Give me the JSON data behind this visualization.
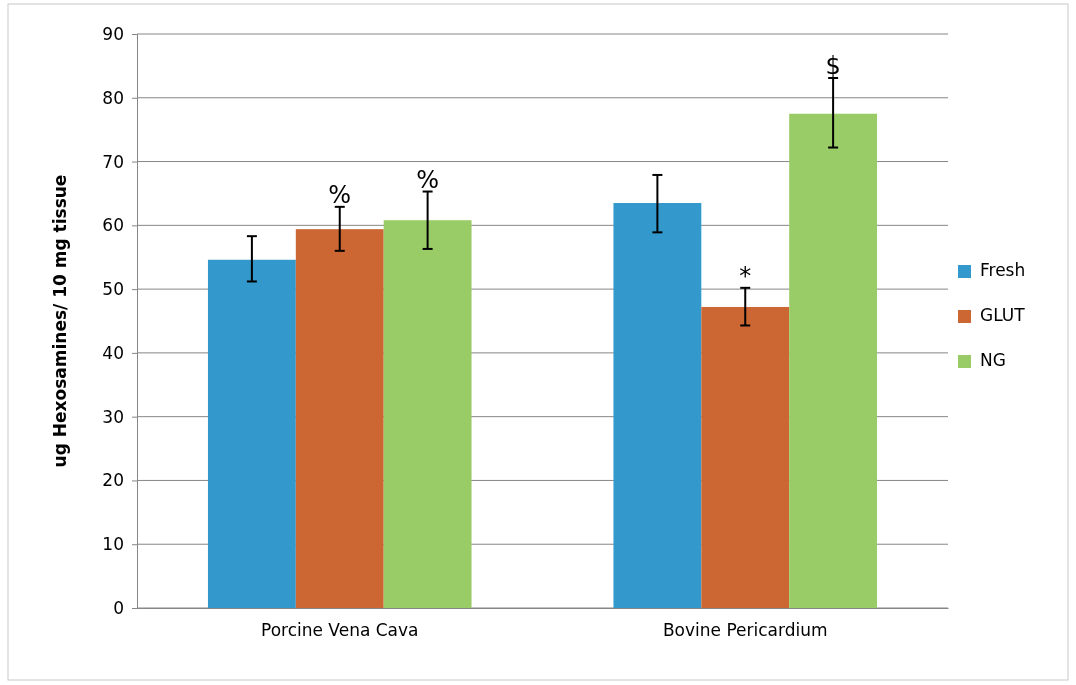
{
  "chart_data": {
    "type": "bar",
    "ylabel": "ug Hexosamines/ 10 mg tissue",
    "categories": [
      "Porcine Vena Cava",
      "Bovine Pericardium"
    ],
    "series": [
      {
        "name": "Fresh",
        "color": "#3399cc",
        "values": [
          54.6,
          63.5
        ],
        "errors": [
          [
            51.2,
            58.3
          ],
          [
            58.9,
            67.9
          ]
        ]
      },
      {
        "name": "GLUT",
        "color": "#cc6633",
        "values": [
          59.4,
          47.2
        ],
        "errors": [
          [
            56.0,
            62.9
          ],
          [
            44.3,
            50.2
          ]
        ]
      },
      {
        "name": "NG",
        "color": "#99cc66",
        "values": [
          60.8,
          77.5
        ],
        "errors": [
          [
            56.3,
            65.3
          ],
          [
            72.2,
            83.1
          ]
        ]
      }
    ],
    "ylim": [
      0,
      90
    ],
    "yticks": [
      0,
      10,
      20,
      30,
      40,
      50,
      60,
      70,
      80,
      90
    ],
    "grid": "y",
    "legend": "right",
    "annotations": [
      {
        "text": "%",
        "x": "Porcine Vena Cava",
        "y": 62.9
      },
      "%",
      {
        "text": "*",
        "x": "Bovine Pericardium",
        "y": 50.2
      },
      "$"
    ]
  }
}
